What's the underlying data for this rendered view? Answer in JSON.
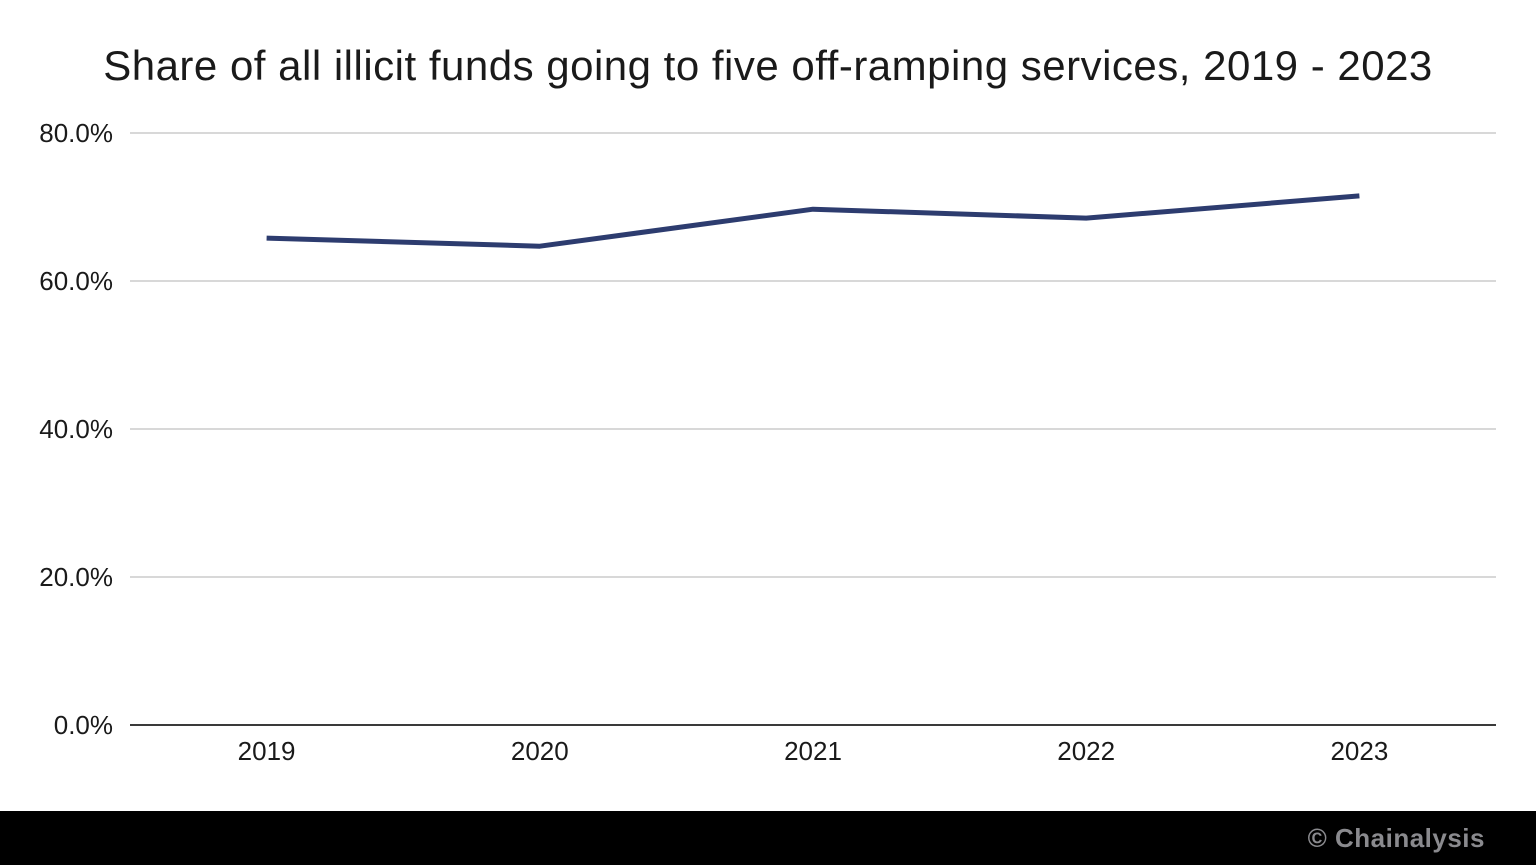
{
  "chart_data": {
    "type": "line",
    "title": "Share of all illicit funds going to five off-ramping services, 2019 - 2023",
    "categories": [
      "2019",
      "2020",
      "2021",
      "2022",
      "2023"
    ],
    "values": [
      65.8,
      64.7,
      69.7,
      68.5,
      71.5
    ],
    "xlabel": "",
    "ylabel": "",
    "ylim": [
      0,
      80
    ],
    "yticks": {
      "values": [
        80,
        60,
        40,
        20,
        0
      ],
      "labels": [
        "80.0%",
        "60.0%",
        "40.0%",
        "20.0%",
        "0.0%"
      ]
    },
    "grid": "horizontal",
    "legend": "none",
    "line_color": "#2d3c6f",
    "gridline_color": "#d8d8d8",
    "axis_color": "#3a3a3a"
  },
  "footer": {
    "watermark": "© Chainalysis",
    "background": "#000000",
    "text_color": "#8a8a8e"
  }
}
